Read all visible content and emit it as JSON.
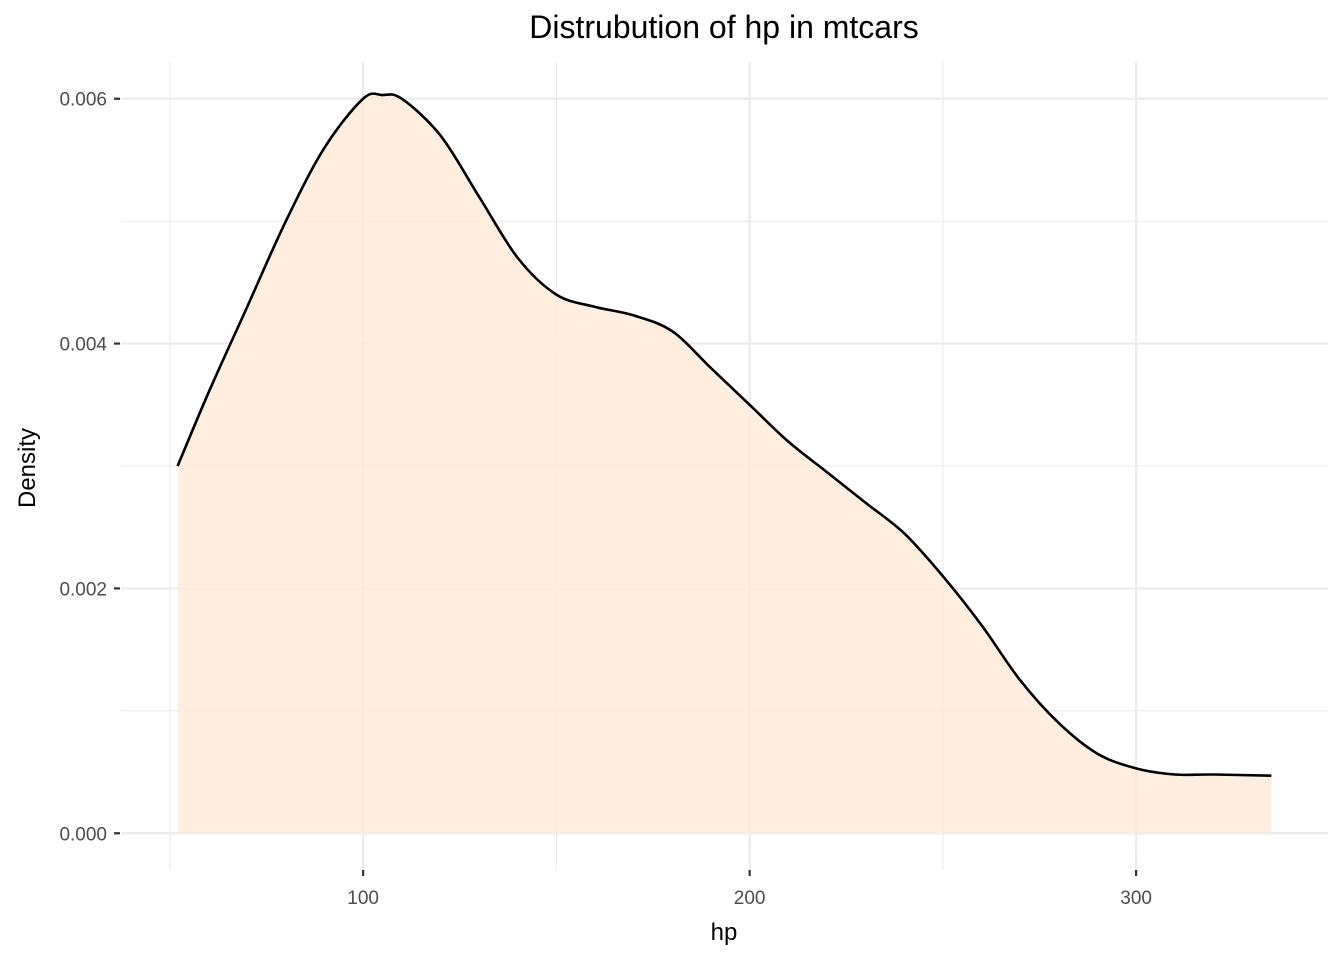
{
  "chart_data": {
    "type": "area",
    "title": "Distrubution of hp in mtcars",
    "xlabel": "hp",
    "ylabel": "Density",
    "xlim": [
      37.35,
      349.65
    ],
    "ylim": [
      -0.0003,
      0.0063
    ],
    "x_ticks": [
      100,
      200,
      300
    ],
    "y_ticks": [
      0.0,
      0.002,
      0.004,
      0.006
    ],
    "x_tick_labels": [
      "100",
      "200",
      "300"
    ],
    "y_tick_labels": [
      "0.000",
      "0.002",
      "0.004",
      "0.006"
    ],
    "x_minor": [
      50,
      150,
      250
    ],
    "y_minor": [
      0.001,
      0.003,
      0.005
    ],
    "grid": true,
    "series": [
      {
        "x": [
          52,
          60,
          70,
          80,
          90,
          100,
          105,
          110,
          120,
          130,
          140,
          150,
          160,
          170,
          180,
          190,
          200,
          210,
          220,
          230,
          240,
          250,
          260,
          270,
          280,
          290,
          300,
          310,
          320,
          335
        ],
        "values": [
          0.003,
          0.0036,
          0.0043,
          0.005,
          0.0056,
          0.006,
          0.00603,
          0.006,
          0.0057,
          0.0052,
          0.0047,
          0.0044,
          0.0043,
          0.00423,
          0.0041,
          0.0038,
          0.0035,
          0.0032,
          0.00295,
          0.0027,
          0.00245,
          0.0021,
          0.0017,
          0.00125,
          0.0009,
          0.00065,
          0.00053,
          0.00048,
          0.00048,
          0.00047
        ]
      }
    ],
    "fill_color": "#fdebdb",
    "line_color": "#000000"
  }
}
